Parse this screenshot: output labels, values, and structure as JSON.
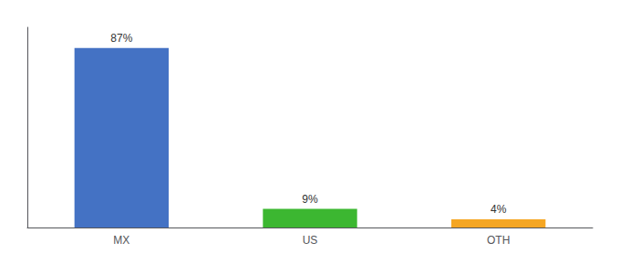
{
  "chart_data": {
    "type": "bar",
    "categories": [
      "MX",
      "US",
      "OTH"
    ],
    "values": [
      87,
      9,
      4
    ],
    "value_labels": [
      "87%",
      "9%",
      "4%"
    ],
    "colors": [
      "#4472c4",
      "#3cb731",
      "#f5a623"
    ],
    "ylim": [
      0,
      97
    ],
    "grid": false,
    "data_labels": true,
    "tick_labels": "x"
  }
}
